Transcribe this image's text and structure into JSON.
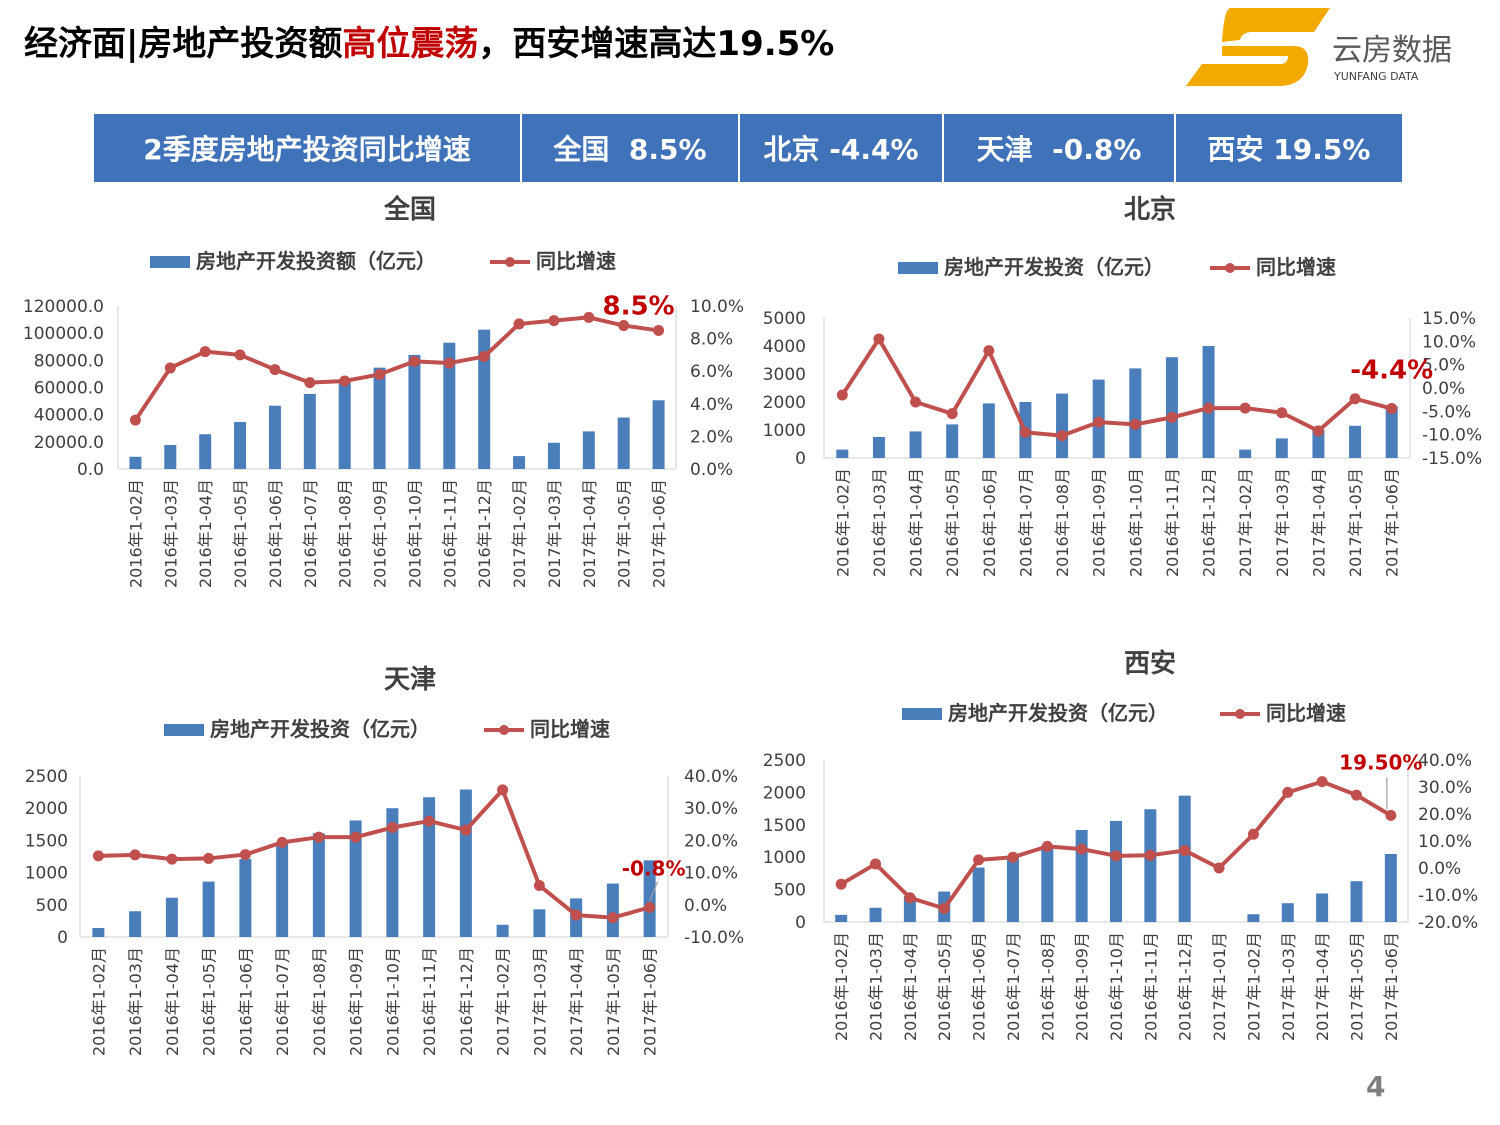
{
  "title": {
    "part1": "经济面|房地产投资额",
    "highlight": "高位震荡",
    "part2": "，西安增速高达19.5%"
  },
  "logo": {
    "name": "云房数据",
    "sub": "YUNFANG DATA",
    "colors": [
      "#f2a900",
      "#e58a00"
    ]
  },
  "banner": [
    "2季度房地产投资同比增速",
    "全国  8.5%",
    "北京 -4.4%",
    "天津  -0.8%",
    "西安 19.5%"
  ],
  "colors": {
    "bar": "#4a7ebb",
    "line": "#c0504d",
    "accent": "#c00000",
    "banner": "#3f72b8"
  },
  "page_number": "4",
  "chart_data": [
    {
      "id": "national",
      "type": "bar+line",
      "title": "全国",
      "legend": [
        "房地产开发投资额（亿元）",
        "同比增速"
      ],
      "categories": [
        "2016年1-02月",
        "2016年1-03月",
        "2016年1-04月",
        "2016年1-05月",
        "2016年1-06月",
        "2016年1-07月",
        "2016年1-08月",
        "2016年1-09月",
        "2016年1-10月",
        "2016年1-11月",
        "2016年1-12月",
        "2017年1-02月",
        "2017年1-03月",
        "2017年1-04月",
        "2017年1-05月",
        "2017年1-06月"
      ],
      "series": [
        {
          "name": "房地产开发投资额（亿元）",
          "kind": "bar",
          "axis": "left",
          "values": [
            9000,
            17700,
            25600,
            34600,
            46600,
            55300,
            64500,
            74600,
            84000,
            93000,
            102600,
            9500,
            19300,
            27700,
            37900,
            50600
          ]
        },
        {
          "name": "同比增速",
          "kind": "line",
          "axis": "right",
          "values": [
            3.0,
            6.2,
            7.2,
            7.0,
            6.1,
            5.3,
            5.4,
            5.8,
            6.6,
            6.5,
            6.9,
            8.9,
            9.1,
            9.3,
            8.8,
            8.5
          ]
        }
      ],
      "left_axis": {
        "min": 0,
        "max": 120000,
        "ticks": [
          "0.0",
          "20000.0",
          "40000.0",
          "60000.0",
          "80000.0",
          "100000.0",
          "120000.0"
        ]
      },
      "right_axis": {
        "min": 0,
        "max": 10,
        "ticks": [
          "0.0%",
          "2.0%",
          "4.0%",
          "6.0%",
          "8.0%",
          "10.0%"
        ]
      },
      "annotation": {
        "text": "8.5%",
        "index": 15
      }
    },
    {
      "id": "beijing",
      "type": "bar+line",
      "title": "北京",
      "legend": [
        "房地产开发投资（亿元）",
        "同比增速"
      ],
      "categories": [
        "2016年1-02月",
        "2016年1-03月",
        "2016年1-04月",
        "2016年1-05月",
        "2016年1-06月",
        "2016年1-07月",
        "2016年1-08月",
        "2016年1-09月",
        "2016年1-10月",
        "2016年1-11月",
        "2016年1-12月",
        "2017年1-02月",
        "2017年1-03月",
        "2017年1-04月",
        "2017年1-05月",
        "2017年1-06月"
      ],
      "series": [
        {
          "name": "房地产开发投资（亿元）",
          "kind": "bar",
          "axis": "left",
          "values": [
            300,
            750,
            950,
            1200,
            1950,
            2000,
            2300,
            2800,
            3200,
            3600,
            4000,
            300,
            700,
            1000,
            1150,
            1850
          ]
        },
        {
          "name": "同比增速",
          "kind": "line",
          "axis": "right",
          "values": [
            -1.5,
            10.5,
            -3.0,
            -5.5,
            8.0,
            -9.5,
            -10.2,
            -7.3,
            -7.8,
            -6.3,
            -4.3,
            -4.3,
            -5.3,
            -9.2,
            -2.3,
            -4.4
          ]
        }
      ],
      "left_axis": {
        "min": 0,
        "max": 5000,
        "ticks": [
          "0",
          "1000",
          "2000",
          "3000",
          "4000",
          "5000"
        ]
      },
      "right_axis": {
        "min": -15,
        "max": 15,
        "ticks": [
          "-15.0%",
          "-10.0%",
          "-5.0%",
          "0.0%",
          "5.0%",
          "10.0%",
          "15.0%"
        ]
      },
      "annotation": {
        "text": "-4.4%",
        "index": 15
      }
    },
    {
      "id": "tianjin",
      "type": "bar+line",
      "title": "天津",
      "legend": [
        "房地产开发投资（亿元）",
        "同比增速"
      ],
      "categories": [
        "2016年1-02月",
        "2016年1-03月",
        "2016年1-04月",
        "2016年1-05月",
        "2016年1-06月",
        "2016年1-07月",
        "2016年1-08月",
        "2016年1-09月",
        "2016年1-10月",
        "2016年1-11月",
        "2016年1-12月",
        "2017年1-02月",
        "2017年1-03月",
        "2017年1-04月",
        "2017年1-05月",
        "2017年1-06月"
      ],
      "series": [
        {
          "name": "房地产开发投资（亿元）",
          "kind": "bar",
          "axis": "left",
          "values": [
            140,
            400,
            610,
            860,
            1210,
            1450,
            1610,
            1810,
            2000,
            2170,
            2290,
            190,
            430,
            600,
            830,
            1190
          ]
        },
        {
          "name": "同比增速",
          "kind": "line",
          "axis": "right",
          "values": [
            15.2,
            15.5,
            14.2,
            14.4,
            15.6,
            19.4,
            21.0,
            21.0,
            24.0,
            26.0,
            23.2,
            35.7,
            6.0,
            -3.2,
            -4.0,
            -0.8
          ]
        }
      ],
      "left_axis": {
        "min": 0,
        "max": 2500,
        "ticks": [
          "0",
          "500",
          "1000",
          "1500",
          "2000",
          "2500"
        ]
      },
      "right_axis": {
        "min": -10,
        "max": 40,
        "ticks": [
          "-10.0%",
          "0.0%",
          "10.0%",
          "20.0%",
          "30.0%",
          "40.0%"
        ]
      },
      "annotation": {
        "text": "-0.8%",
        "index": 15
      }
    },
    {
      "id": "xian",
      "type": "bar+line",
      "title": "西安",
      "legend": [
        "房地产开发投资（亿元）",
        "同比增速"
      ],
      "categories": [
        "2016年1-02月",
        "2016年1-03月",
        "2016年1-04月",
        "2016年1-05月",
        "2016年1-06月",
        "2016年1-07月",
        "2016年1-08月",
        "2016年1-09月",
        "2016年1-10月",
        "2016年1-11月",
        "2016年1-12月",
        "2017年1-01月",
        "2017年1-02月",
        "2017年1-03月",
        "2017年1-04月",
        "2017年1-05月",
        "2017年1-06月"
      ],
      "series": [
        {
          "name": "房地产开发投资（亿元）",
          "kind": "bar",
          "axis": "left",
          "values": [
            110,
            220,
            400,
            470,
            840,
            1000,
            1180,
            1420,
            1560,
            1740,
            1950,
            0,
            120,
            290,
            440,
            630,
            1050
          ]
        },
        {
          "name": "同比增速",
          "kind": "line",
          "axis": "right",
          "values": [
            -6.0,
            1.5,
            -11.0,
            -15.0,
            3.0,
            4.0,
            8.0,
            7.0,
            4.5,
            4.7,
            6.5,
            0.0,
            12.5,
            28.0,
            32.0,
            27.0,
            19.5
          ]
        }
      ],
      "left_axis": {
        "min": 0,
        "max": 2500,
        "ticks": [
          "0",
          "500",
          "1000",
          "1500",
          "2000",
          "2500"
        ]
      },
      "right_axis": {
        "min": -20,
        "max": 40,
        "ticks": [
          "-20.0%",
          "-10.0%",
          "0.0%",
          "10.0%",
          "20.0%",
          "30.0%",
          "40.0%"
        ]
      },
      "annotation": {
        "text": "19.50%",
        "index": 16
      }
    }
  ]
}
